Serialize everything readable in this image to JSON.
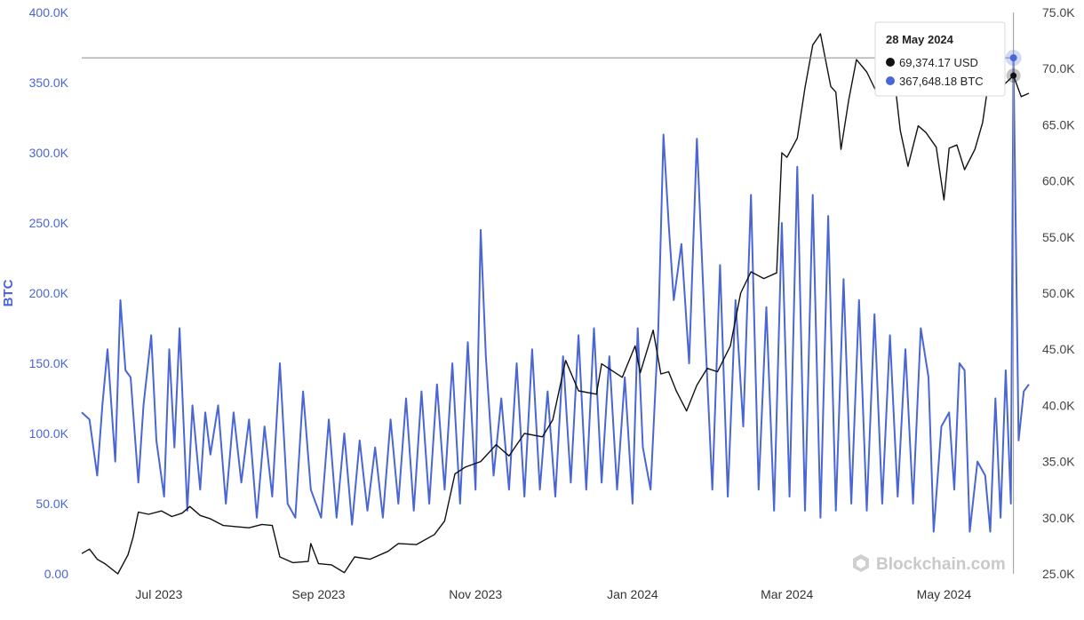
{
  "chart_data": {
    "type": "line",
    "watermark": "Blockchain.com",
    "left_axis": {
      "label": "BTC",
      "color": "#4a66d4",
      "range": [
        0,
        400000
      ],
      "ticks": [
        {
          "value": 0,
          "label": "0.00"
        },
        {
          "value": 50000,
          "label": "50.0K"
        },
        {
          "value": 100000,
          "label": "100.0K"
        },
        {
          "value": 150000,
          "label": "150.0K"
        },
        {
          "value": 200000,
          "label": "200.0K"
        },
        {
          "value": 250000,
          "label": "250.0K"
        },
        {
          "value": 300000,
          "label": "300.0K"
        },
        {
          "value": 350000,
          "label": "350.0K"
        },
        {
          "value": 400000,
          "label": "400.0K"
        }
      ]
    },
    "right_axis": {
      "label": "",
      "range": [
        25000,
        75000
      ],
      "ticks": [
        {
          "value": 25000,
          "label": "25.0K"
        },
        {
          "value": 30000,
          "label": "30.0K"
        },
        {
          "value": 35000,
          "label": "35.0K"
        },
        {
          "value": 40000,
          "label": "40.0K"
        },
        {
          "value": 45000,
          "label": "45.0K"
        },
        {
          "value": 50000,
          "label": "50.0K"
        },
        {
          "value": 55000,
          "label": "55.0K"
        },
        {
          "value": 60000,
          "label": "60.0K"
        },
        {
          "value": 65000,
          "label": "65.0K"
        },
        {
          "value": 70000,
          "label": "70.0K"
        },
        {
          "value": 75000,
          "label": "75.0K"
        }
      ]
    },
    "x_axis": {
      "range": [
        "2023-06-01",
        "2024-06-03"
      ],
      "ticks": [
        {
          "date": "2023-07-01",
          "label": "Jul 2023"
        },
        {
          "date": "2023-09-01",
          "label": "Sep 2023"
        },
        {
          "date": "2023-11-01",
          "label": "Nov 2023"
        },
        {
          "date": "2024-01-01",
          "label": "Jan 2024"
        },
        {
          "date": "2024-03-01",
          "label": "Mar 2024"
        },
        {
          "date": "2024-05-01",
          "label": "May 2024"
        }
      ]
    },
    "grid": false,
    "legend": "none",
    "series": [
      {
        "name": "BTC",
        "axis": "left",
        "color": "#4a66d4",
        "points": [
          [
            "2023-06-01",
            115000
          ],
          [
            "2023-06-04",
            110000
          ],
          [
            "2023-06-07",
            70000
          ],
          [
            "2023-06-09",
            120000
          ],
          [
            "2023-06-11",
            160000
          ],
          [
            "2023-06-14",
            80000
          ],
          [
            "2023-06-16",
            195000
          ],
          [
            "2023-06-18",
            145000
          ],
          [
            "2023-06-20",
            140000
          ],
          [
            "2023-06-23",
            65000
          ],
          [
            "2023-06-25",
            120000
          ],
          [
            "2023-06-28",
            170000
          ],
          [
            "2023-06-30",
            95000
          ],
          [
            "2023-07-03",
            55000
          ],
          [
            "2023-07-05",
            160000
          ],
          [
            "2023-07-07",
            90000
          ],
          [
            "2023-07-09",
            175000
          ],
          [
            "2023-07-12",
            45000
          ],
          [
            "2023-07-14",
            120000
          ],
          [
            "2023-07-17",
            60000
          ],
          [
            "2023-07-19",
            115000
          ],
          [
            "2023-07-21",
            85000
          ],
          [
            "2023-07-24",
            120000
          ],
          [
            "2023-07-27",
            50000
          ],
          [
            "2023-07-30",
            115000
          ],
          [
            "2023-08-02",
            65000
          ],
          [
            "2023-08-05",
            110000
          ],
          [
            "2023-08-08",
            40000
          ],
          [
            "2023-08-11",
            105000
          ],
          [
            "2023-08-14",
            55000
          ],
          [
            "2023-08-17",
            150000
          ],
          [
            "2023-08-20",
            50000
          ],
          [
            "2023-08-23",
            40000
          ],
          [
            "2023-08-26",
            130000
          ],
          [
            "2023-08-29",
            60000
          ],
          [
            "2023-09-02",
            40000
          ],
          [
            "2023-09-05",
            110000
          ],
          [
            "2023-09-08",
            40000
          ],
          [
            "2023-09-11",
            100000
          ],
          [
            "2023-09-14",
            35000
          ],
          [
            "2023-09-17",
            95000
          ],
          [
            "2023-09-20",
            45000
          ],
          [
            "2023-09-23",
            90000
          ],
          [
            "2023-09-26",
            40000
          ],
          [
            "2023-09-29",
            110000
          ],
          [
            "2023-10-02",
            50000
          ],
          [
            "2023-10-05",
            125000
          ],
          [
            "2023-10-08",
            45000
          ],
          [
            "2023-10-11",
            130000
          ],
          [
            "2023-10-14",
            50000
          ],
          [
            "2023-10-17",
            135000
          ],
          [
            "2023-10-20",
            60000
          ],
          [
            "2023-10-23",
            150000
          ],
          [
            "2023-10-26",
            50000
          ],
          [
            "2023-10-29",
            165000
          ],
          [
            "2023-11-01",
            60000
          ],
          [
            "2023-11-03",
            245000
          ],
          [
            "2023-11-05",
            155000
          ],
          [
            "2023-11-08",
            70000
          ],
          [
            "2023-11-11",
            125000
          ],
          [
            "2023-11-14",
            60000
          ],
          [
            "2023-11-17",
            150000
          ],
          [
            "2023-11-20",
            55000
          ],
          [
            "2023-11-23",
            160000
          ],
          [
            "2023-11-26",
            60000
          ],
          [
            "2023-11-29",
            130000
          ],
          [
            "2023-12-02",
            55000
          ],
          [
            "2023-12-05",
            155000
          ],
          [
            "2023-12-08",
            65000
          ],
          [
            "2023-12-11",
            170000
          ],
          [
            "2023-12-14",
            60000
          ],
          [
            "2023-12-17",
            175000
          ],
          [
            "2023-12-20",
            65000
          ],
          [
            "2023-12-23",
            155000
          ],
          [
            "2023-12-26",
            60000
          ],
          [
            "2023-12-29",
            140000
          ],
          [
            "2024-01-01",
            50000
          ],
          [
            "2024-01-03",
            175000
          ],
          [
            "2024-01-05",
            90000
          ],
          [
            "2024-01-08",
            60000
          ],
          [
            "2024-01-11",
            175000
          ],
          [
            "2024-01-13",
            313000
          ],
          [
            "2024-01-15",
            250000
          ],
          [
            "2024-01-17",
            195000
          ],
          [
            "2024-01-20",
            235000
          ],
          [
            "2024-01-23",
            150000
          ],
          [
            "2024-01-26",
            310000
          ],
          [
            "2024-01-29",
            180000
          ],
          [
            "2024-02-01",
            60000
          ],
          [
            "2024-02-04",
            220000
          ],
          [
            "2024-02-07",
            55000
          ],
          [
            "2024-02-10",
            195000
          ],
          [
            "2024-02-13",
            105000
          ],
          [
            "2024-02-16",
            270000
          ],
          [
            "2024-02-19",
            60000
          ],
          [
            "2024-02-22",
            190000
          ],
          [
            "2024-02-25",
            45000
          ],
          [
            "2024-02-28",
            250000
          ],
          [
            "2024-03-02",
            55000
          ],
          [
            "2024-03-05",
            290000
          ],
          [
            "2024-03-08",
            45000
          ],
          [
            "2024-03-11",
            270000
          ],
          [
            "2024-03-14",
            40000
          ],
          [
            "2024-03-17",
            255000
          ],
          [
            "2024-03-20",
            45000
          ],
          [
            "2024-03-23",
            210000
          ],
          [
            "2024-03-26",
            50000
          ],
          [
            "2024-03-29",
            195000
          ],
          [
            "2024-04-01",
            45000
          ],
          [
            "2024-04-04",
            185000
          ],
          [
            "2024-04-07",
            50000
          ],
          [
            "2024-04-10",
            170000
          ],
          [
            "2024-04-13",
            55000
          ],
          [
            "2024-04-16",
            160000
          ],
          [
            "2024-04-19",
            50000
          ],
          [
            "2024-04-22",
            175000
          ],
          [
            "2024-04-25",
            140000
          ],
          [
            "2024-04-27",
            30000
          ],
          [
            "2024-04-30",
            105000
          ],
          [
            "2024-05-03",
            115000
          ],
          [
            "2024-05-05",
            60000
          ],
          [
            "2024-05-07",
            150000
          ],
          [
            "2024-05-09",
            145000
          ],
          [
            "2024-05-11",
            30000
          ],
          [
            "2024-05-14",
            80000
          ],
          [
            "2024-05-17",
            70000
          ],
          [
            "2024-05-19",
            30000
          ],
          [
            "2024-05-21",
            125000
          ],
          [
            "2024-05-23",
            40000
          ],
          [
            "2024-05-25",
            145000
          ],
          [
            "2024-05-27",
            50000
          ],
          [
            "2024-05-28",
            367648
          ],
          [
            "2024-05-30",
            95000
          ],
          [
            "2024-06-01",
            130000
          ],
          [
            "2024-06-03",
            135000
          ]
        ]
      },
      {
        "name": "USD",
        "axis": "right",
        "color": "#111111",
        "points": [
          [
            "2023-06-01",
            26800
          ],
          [
            "2023-06-04",
            27200
          ],
          [
            "2023-06-07",
            26300
          ],
          [
            "2023-06-10",
            25900
          ],
          [
            "2023-06-15",
            25000
          ],
          [
            "2023-06-19",
            26700
          ],
          [
            "2023-06-21",
            28300
          ],
          [
            "2023-06-23",
            30500
          ],
          [
            "2023-06-27",
            30300
          ],
          [
            "2023-07-02",
            30600
          ],
          [
            "2023-07-06",
            30100
          ],
          [
            "2023-07-10",
            30400
          ],
          [
            "2023-07-13",
            31000
          ],
          [
            "2023-07-17",
            30200
          ],
          [
            "2023-07-21",
            29900
          ],
          [
            "2023-07-26",
            29300
          ],
          [
            "2023-07-31",
            29200
          ],
          [
            "2023-08-05",
            29100
          ],
          [
            "2023-08-10",
            29400
          ],
          [
            "2023-08-14",
            29300
          ],
          [
            "2023-08-17",
            26500
          ],
          [
            "2023-08-22",
            26000
          ],
          [
            "2023-08-28",
            26100
          ],
          [
            "2023-08-29",
            27700
          ],
          [
            "2023-09-01",
            25900
          ],
          [
            "2023-09-06",
            25800
          ],
          [
            "2023-09-11",
            25100
          ],
          [
            "2023-09-15",
            26500
          ],
          [
            "2023-09-21",
            26300
          ],
          [
            "2023-09-28",
            27000
          ],
          [
            "2023-10-02",
            27700
          ],
          [
            "2023-10-09",
            27600
          ],
          [
            "2023-10-16",
            28500
          ],
          [
            "2023-10-20",
            29700
          ],
          [
            "2023-10-24",
            33900
          ],
          [
            "2023-10-28",
            34500
          ],
          [
            "2023-11-03",
            35000
          ],
          [
            "2023-11-09",
            36500
          ],
          [
            "2023-11-14",
            35500
          ],
          [
            "2023-11-20",
            37500
          ],
          [
            "2023-11-27",
            37200
          ],
          [
            "2023-12-01",
            38700
          ],
          [
            "2023-12-06",
            44000
          ],
          [
            "2023-12-11",
            41300
          ],
          [
            "2023-12-18",
            41000
          ],
          [
            "2023-12-20",
            43700
          ],
          [
            "2023-12-28",
            42500
          ],
          [
            "2024-01-02",
            45300
          ],
          [
            "2024-01-04",
            42900
          ],
          [
            "2024-01-09",
            46700
          ],
          [
            "2024-01-12",
            42800
          ],
          [
            "2024-01-15",
            43000
          ],
          [
            "2024-01-18",
            41300
          ],
          [
            "2024-01-22",
            39500
          ],
          [
            "2024-01-26",
            41800
          ],
          [
            "2024-01-30",
            43300
          ],
          [
            "2024-02-03",
            43000
          ],
          [
            "2024-02-08",
            45300
          ],
          [
            "2024-02-12",
            50000
          ],
          [
            "2024-02-16",
            51900
          ],
          [
            "2024-02-21",
            51300
          ],
          [
            "2024-02-26",
            51800
          ],
          [
            "2024-02-28",
            62500
          ],
          [
            "2024-03-01",
            62100
          ],
          [
            "2024-03-05",
            63800
          ],
          [
            "2024-03-08",
            68300
          ],
          [
            "2024-03-11",
            72100
          ],
          [
            "2024-03-14",
            73100
          ],
          [
            "2024-03-18",
            68400
          ],
          [
            "2024-03-20",
            67900
          ],
          [
            "2024-03-22",
            62800
          ],
          [
            "2024-03-25",
            67200
          ],
          [
            "2024-03-28",
            70800
          ],
          [
            "2024-04-01",
            69700
          ],
          [
            "2024-04-05",
            67800
          ],
          [
            "2024-04-08",
            71600
          ],
          [
            "2024-04-11",
            70600
          ],
          [
            "2024-04-14",
            64500
          ],
          [
            "2024-04-17",
            61300
          ],
          [
            "2024-04-21",
            64900
          ],
          [
            "2024-04-24",
            64300
          ],
          [
            "2024-04-28",
            63000
          ],
          [
            "2024-05-01",
            58300
          ],
          [
            "2024-05-03",
            62900
          ],
          [
            "2024-05-06",
            63200
          ],
          [
            "2024-05-09",
            61000
          ],
          [
            "2024-05-13",
            62800
          ],
          [
            "2024-05-16",
            65200
          ],
          [
            "2024-05-20",
            71400
          ],
          [
            "2024-05-22",
            69300
          ],
          [
            "2024-05-24",
            68500
          ],
          [
            "2024-05-28",
            69374
          ],
          [
            "2024-05-31",
            67500
          ],
          [
            "2024-06-03",
            67800
          ]
        ]
      }
    ],
    "hover": {
      "date": "2024-05-28",
      "title": "28 May 2024",
      "rows": [
        {
          "color": "#111111",
          "text": "69,374.17 USD"
        },
        {
          "color": "#4a66d4",
          "text": "367,648.18 BTC"
        }
      ]
    }
  }
}
